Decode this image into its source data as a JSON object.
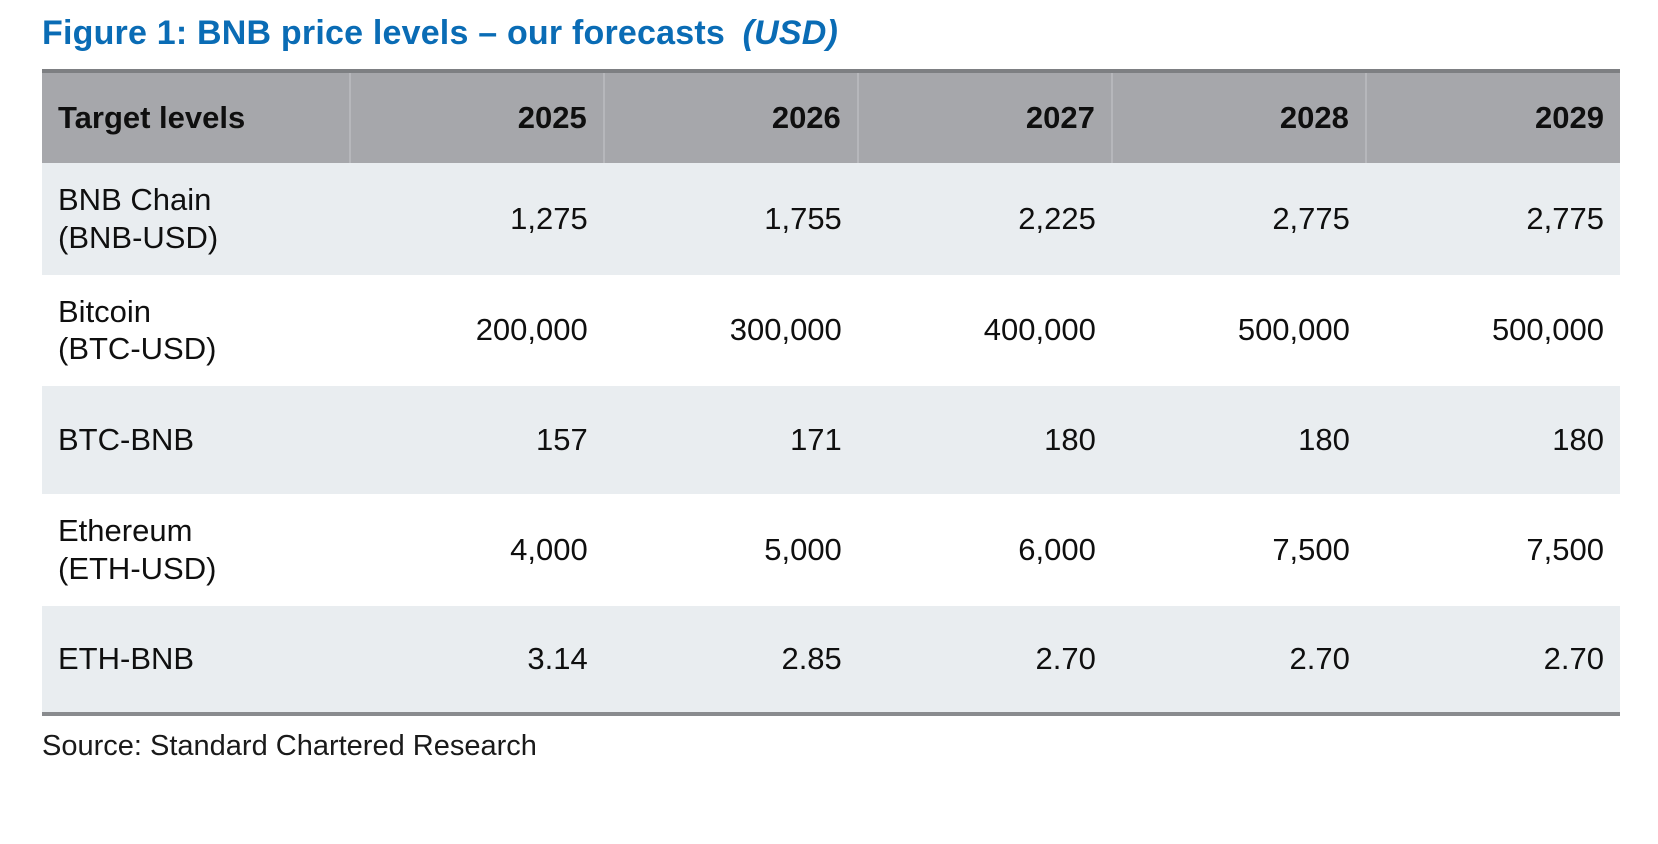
{
  "figure": {
    "title": "Figure 1: BNB price levels – our forecasts",
    "unit_note": "(USD)",
    "source": "Source: Standard Chartered Research"
  },
  "colors": {
    "title_blue": "#0A6CB5",
    "header_gray": "#A6A7AB",
    "row_alt_gray": "#E9EDF0",
    "row_white": "#FFFFFF",
    "rule_gray": "#7D7F82"
  },
  "chart_data": {
    "type": "table",
    "title": "Figure 1: BNB price levels – our forecasts (USD)",
    "columns": [
      "Target levels",
      "2025",
      "2026",
      "2027",
      "2028",
      "2029"
    ],
    "rows": [
      {
        "name": "BNB Chain",
        "ticker": "(BNB-USD)",
        "values": [
          "1,275",
          "1,755",
          "2,225",
          "2,775",
          "2,775"
        ]
      },
      {
        "name": "Bitcoin",
        "ticker": "(BTC-USD)",
        "values": [
          "200,000",
          "300,000",
          "400,000",
          "500,000",
          "500,000"
        ]
      },
      {
        "name": "BTC-BNB",
        "ticker": "",
        "values": [
          "157",
          "171",
          "180",
          "180",
          "180"
        ]
      },
      {
        "name": "Ethereum",
        "ticker": "(ETH-USD)",
        "values": [
          "4,000",
          "5,000",
          "6,000",
          "7,500",
          "7,500"
        ]
      },
      {
        "name": "ETH-BNB",
        "ticker": "",
        "values": [
          "3.14",
          "2.85",
          "2.70",
          "2.70",
          "2.70"
        ]
      }
    ],
    "source": "Source: Standard Chartered Research"
  }
}
